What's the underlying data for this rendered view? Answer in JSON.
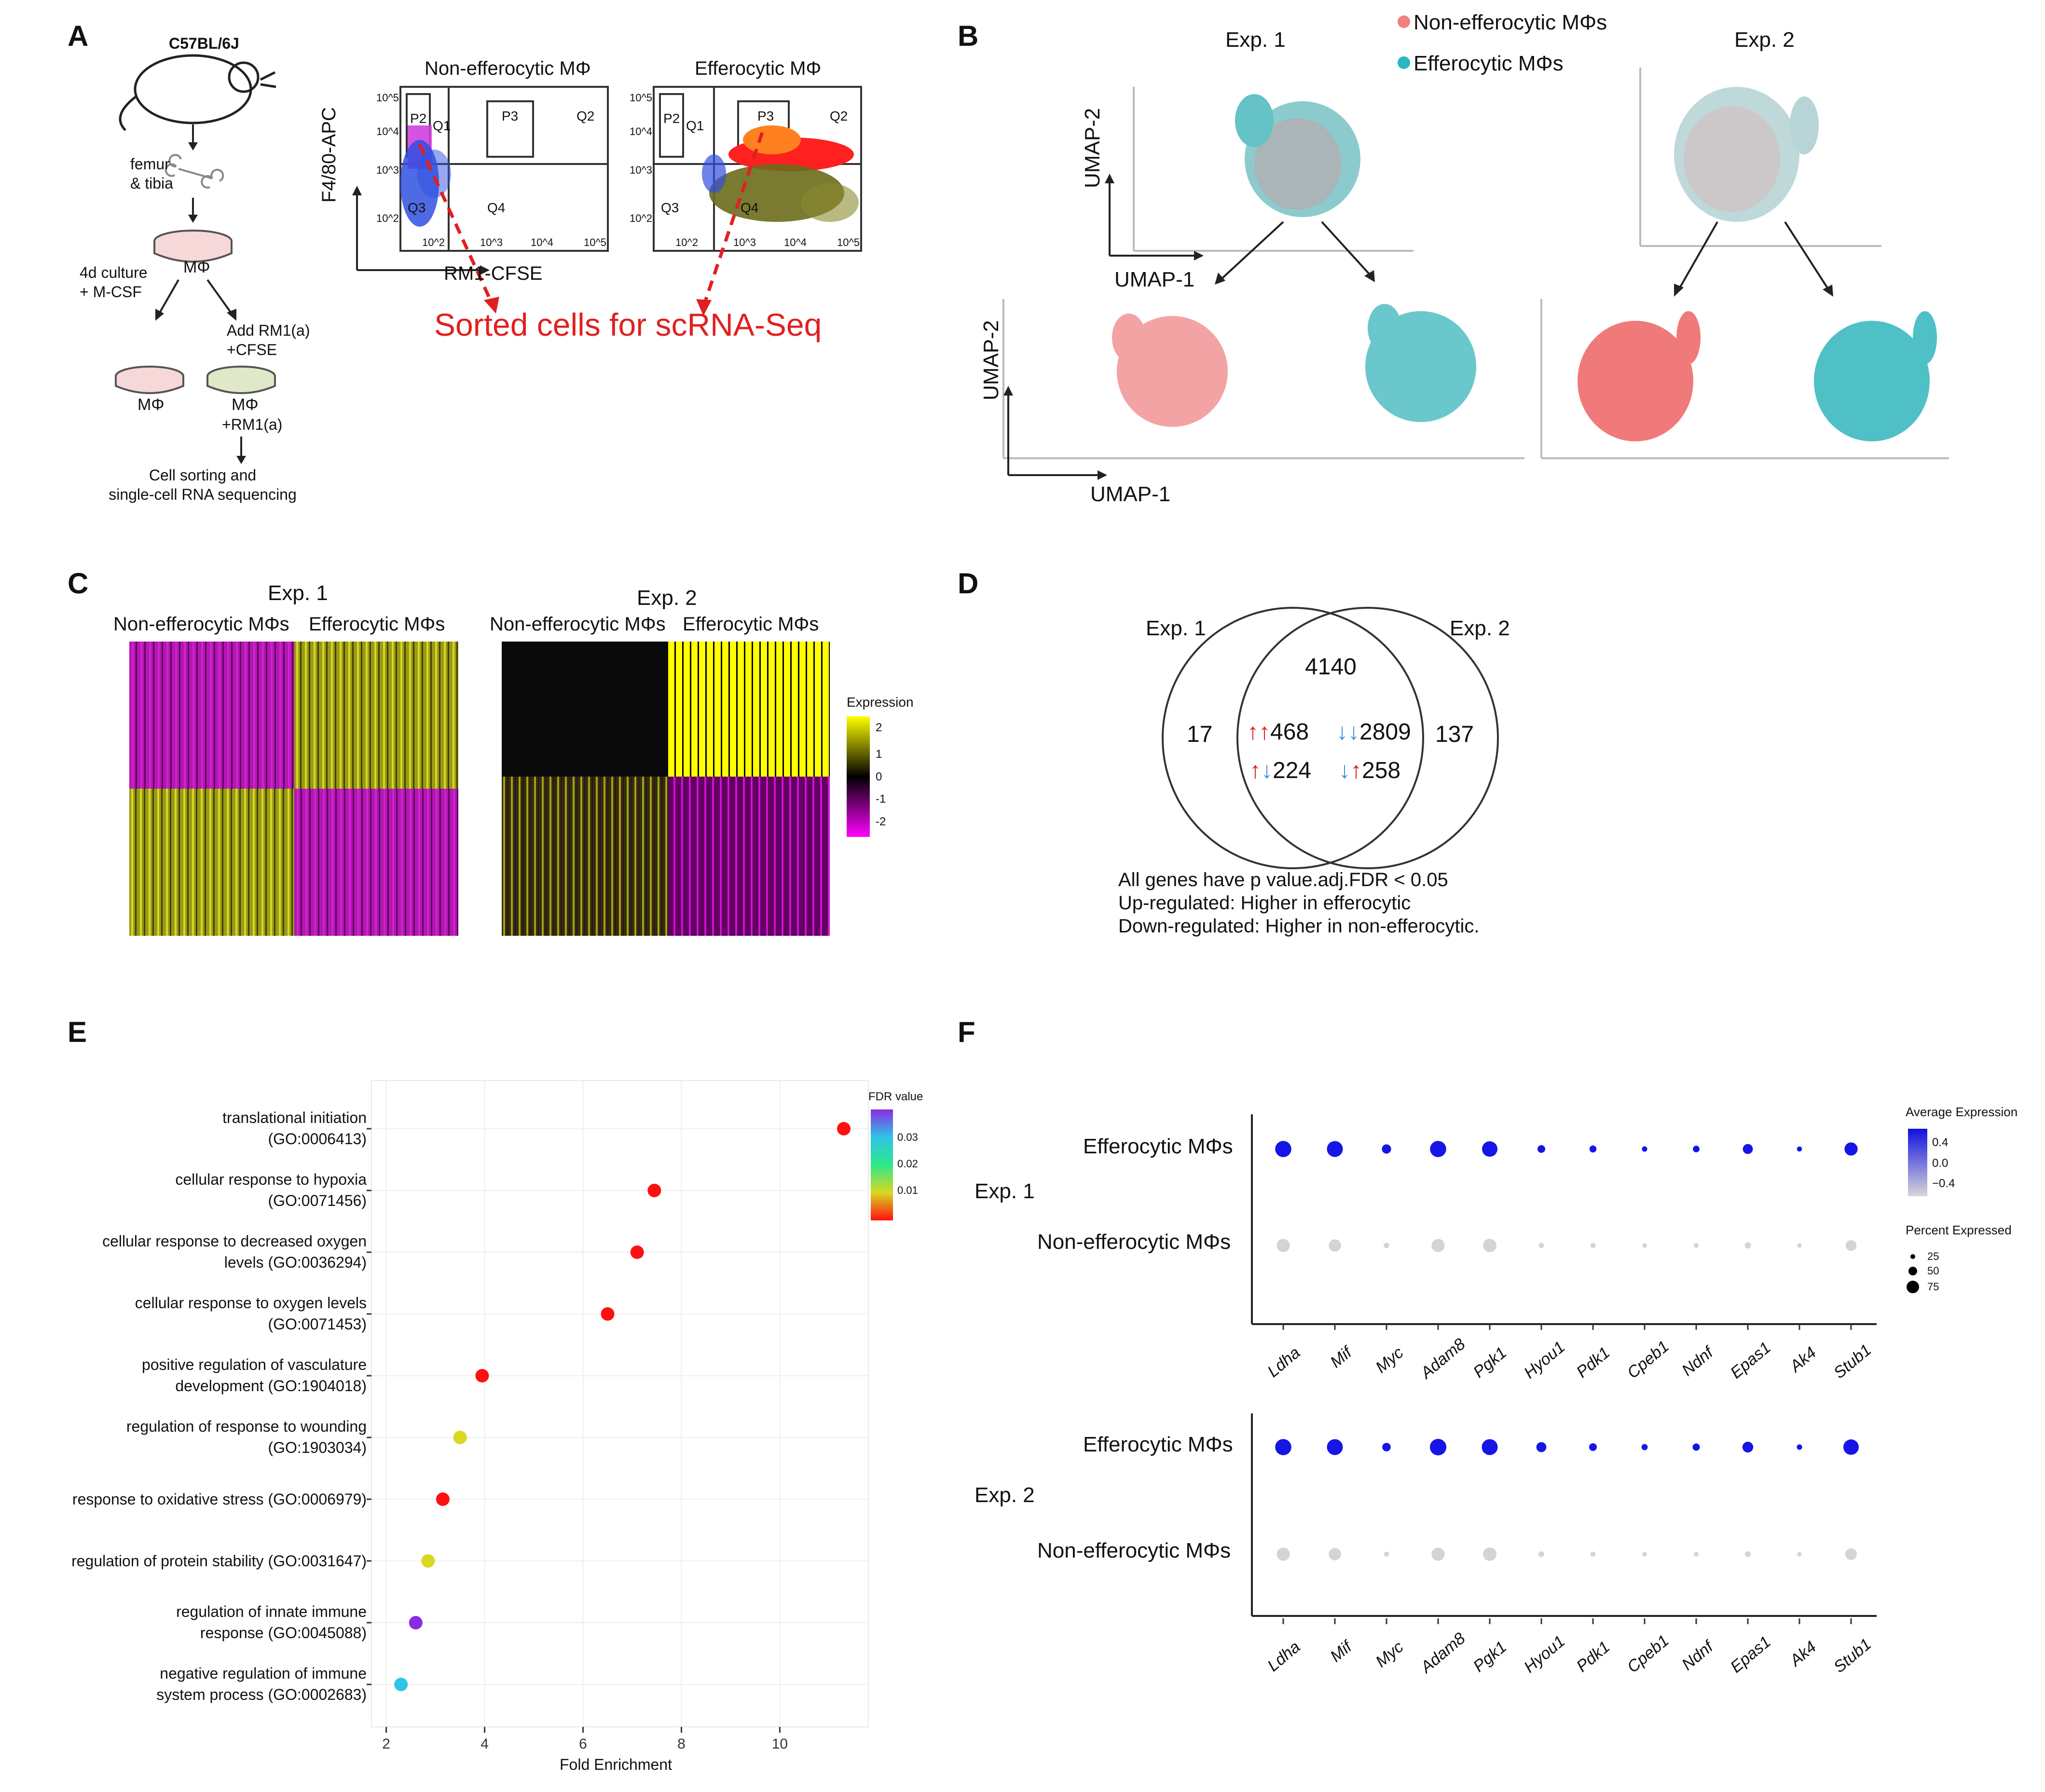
{
  "panels": {
    "A": {
      "label": "A",
      "strain": "C57BL/6J",
      "bone": "femur\n& tibia",
      "mphi": "MΦ",
      "culture": "4d culture\n+ M-CSF",
      "add_rm1": "Add RM1(a)\n+CFSE",
      "mphi_rm1": "+RM1(a)",
      "sorting": "Cell sorting and\nsingle-cell RNA sequencing",
      "flow_left_title": "Non-efferocytic MΦ",
      "flow_right_title": "Efferocytic MΦ",
      "y_axis": "F4/80-APC",
      "x_axis": "RM1-CFSE",
      "gates": [
        "P2",
        "Q1",
        "P3",
        "Q2",
        "Q3",
        "Q4"
      ],
      "ticks": [
        "10^2",
        "10^3",
        "10^4",
        "10^5"
      ],
      "sorted_note": "Sorted cells for scRNA-Seq"
    },
    "B": {
      "label": "B",
      "exp1": "Exp. 1",
      "exp2": "Exp. 2",
      "legend": [
        {
          "label": "Non-efferocytic MΦs",
          "color": "#f08080"
        },
        {
          "label": "Efferocytic MΦs",
          "color": "#2ab7c0"
        }
      ],
      "umap_y": "UMAP-2",
      "umap_x": "UMAP-1"
    },
    "C": {
      "label": "C",
      "exp1": "Exp. 1",
      "exp2": "Exp. 2",
      "group_left": "Non-efferocytic MΦs",
      "group_right": "Efferocytic MΦs",
      "legend_title": "Expression",
      "legend_ticks": [
        "2",
        "1",
        "0",
        "-1",
        "-2"
      ]
    },
    "D": {
      "label": "D",
      "set_left": "Exp. 1",
      "set_right": "Exp. 2",
      "only_left": "17",
      "only_right": "137",
      "overlap_total": "4140",
      "up_up": "468",
      "down_down": "2809",
      "up_down": "224",
      "down_up": "258",
      "note1": "All genes have p value.adj.FDR < 0.05",
      "note2": "Up-regulated: Higher in efferocytic",
      "note3": "Down-regulated: Higher in non-efferocytic."
    },
    "E": {
      "label": "E",
      "legend_title": "FDR value",
      "legend_ticks": [
        "0.03",
        "0.02",
        "0.01"
      ]
    },
    "F": {
      "label": "F",
      "legend_title": "Average Expression",
      "avg_ticks": [
        "0.4",
        "0.0",
        "−0.4"
      ],
      "pct_title": "Percent Expressed",
      "pct_ticks": [
        "25",
        "50",
        "75"
      ],
      "exp1": "Exp. 1",
      "exp2": "Exp. 2",
      "row_eff": "Efferocytic MΦs",
      "row_non": "Non-efferocytic MΦs",
      "genes": [
        "Ldha",
        "Mif",
        "Myc",
        "Adam8",
        "Pgk1",
        "Hyou1",
        "Pdk1",
        "Cpeb1",
        "Ndnf",
        "Epas1",
        "Ak4",
        "Stub1"
      ]
    }
  },
  "chart_data": [
    {
      "type": "scatter",
      "panel": "E",
      "xlabel": "Fold Enrichment",
      "xlim": [
        1.7,
        11.8
      ],
      "xticks": [
        2,
        4,
        6,
        8,
        10
      ],
      "grid": true,
      "categories": [
        "translational initiation\n(GO:0006413)",
        "cellular response to hypoxia\n(GO:0071456)",
        "cellular response to decreased oxygen\nlevels (GO:0036294)",
        "cellular response to oxygen levels\n(GO:0071453)",
        "positive regulation of vasculature\ndevelopment (GO:1904018)",
        "regulation of response to wounding\n(GO:1903034)",
        "response to oxidative stress (GO:0006979)",
        "regulation of protein stability (GO:0031647)",
        "regulation of innate immune\nresponse (GO:0045088)",
        "negative regulation of immune\nsystem process (GO:0002683)"
      ],
      "x": [
        11.3,
        7.45,
        7.1,
        6.5,
        3.95,
        3.5,
        3.15,
        2.85,
        2.6,
        2.3
      ],
      "fdr": [
        0.001,
        0.002,
        0.002,
        0.002,
        0.003,
        0.013,
        0.003,
        0.016,
        0.035,
        0.026
      ]
    },
    {
      "type": "scatter",
      "panel": "F",
      "subtype": "dotplot",
      "series": [
        {
          "name": "Exp. 1 Efferocytic MΦs",
          "pct": [
            80,
            78,
            35,
            80,
            75,
            25,
            20,
            10,
            18,
            40,
            8,
            60
          ],
          "avg": [
            0.5,
            0.5,
            0.5,
            0.5,
            0.5,
            0.5,
            0.5,
            0.5,
            0.5,
            0.5,
            0.5,
            0.5
          ]
        },
        {
          "name": "Exp. 1 Non-efferocytic MΦs",
          "pct": [
            60,
            55,
            12,
            60,
            62,
            10,
            8,
            5,
            6,
            15,
            4,
            45
          ],
          "avg": [
            -0.5,
            -0.5,
            -0.5,
            -0.5,
            -0.5,
            -0.5,
            -0.5,
            -0.5,
            -0.5,
            -0.5,
            -0.5,
            -0.5
          ]
        },
        {
          "name": "Exp. 2 Efferocytic MΦs",
          "pct": [
            80,
            78,
            30,
            82,
            78,
            40,
            25,
            15,
            22,
            45,
            10,
            75
          ],
          "avg": [
            0.5,
            0.5,
            0.5,
            0.5,
            0.5,
            0.5,
            0.5,
            0.5,
            0.5,
            0.5,
            0.5,
            0.5
          ]
        },
        {
          "name": "Exp. 2 Non-efferocytic MΦs",
          "pct": [
            60,
            55,
            8,
            60,
            62,
            12,
            8,
            5,
            6,
            12,
            4,
            50
          ],
          "avg": [
            -0.5,
            -0.5,
            -0.5,
            -0.5,
            -0.5,
            -0.5,
            -0.5,
            -0.5,
            -0.5,
            -0.5,
            -0.5,
            -0.5
          ]
        }
      ]
    }
  ]
}
